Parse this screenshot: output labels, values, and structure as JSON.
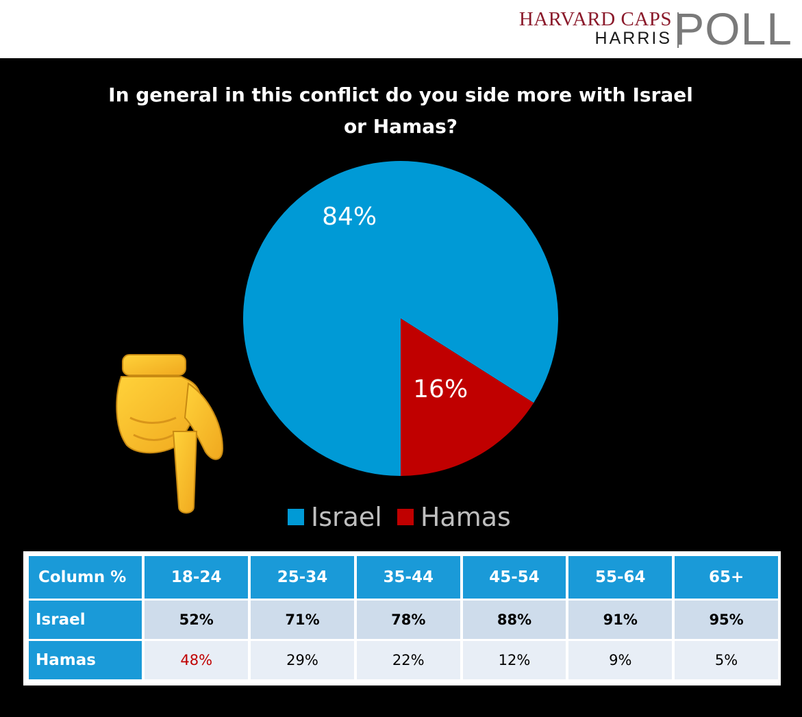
{
  "logo": {
    "line1": "HARVARD CAPS",
    "line2": "HARRIS",
    "line3": "POLL"
  },
  "chart_data": {
    "type": "pie",
    "title": "In general in this conflict do you side more with Israel or Hamas?",
    "slices": [
      {
        "name": "Israel",
        "value": 84,
        "label": "84%",
        "color": "#009ad6"
      },
      {
        "name": "Hamas",
        "value": 16,
        "label": "16%",
        "color": "#c00000"
      }
    ],
    "legend_position": "bottom"
  },
  "legend": [
    {
      "label": "Israel",
      "color": "#009ad6"
    },
    {
      "label": "Hamas",
      "color": "#c00000"
    }
  ],
  "pointer_emoji": "backhand-index-pointing-down",
  "table": {
    "corner": "Column %",
    "columns": [
      "18-24",
      "25-34",
      "35-44",
      "45-54",
      "55-64",
      "65+"
    ],
    "rows": [
      {
        "label": "Israel",
        "values": [
          "52%",
          "71%",
          "78%",
          "88%",
          "91%",
          "95%"
        ]
      },
      {
        "label": "Hamas",
        "values": [
          "48%",
          "29%",
          "22%",
          "12%",
          "9%",
          "5%"
        ]
      }
    ],
    "highlight_color": "#c00000"
  }
}
